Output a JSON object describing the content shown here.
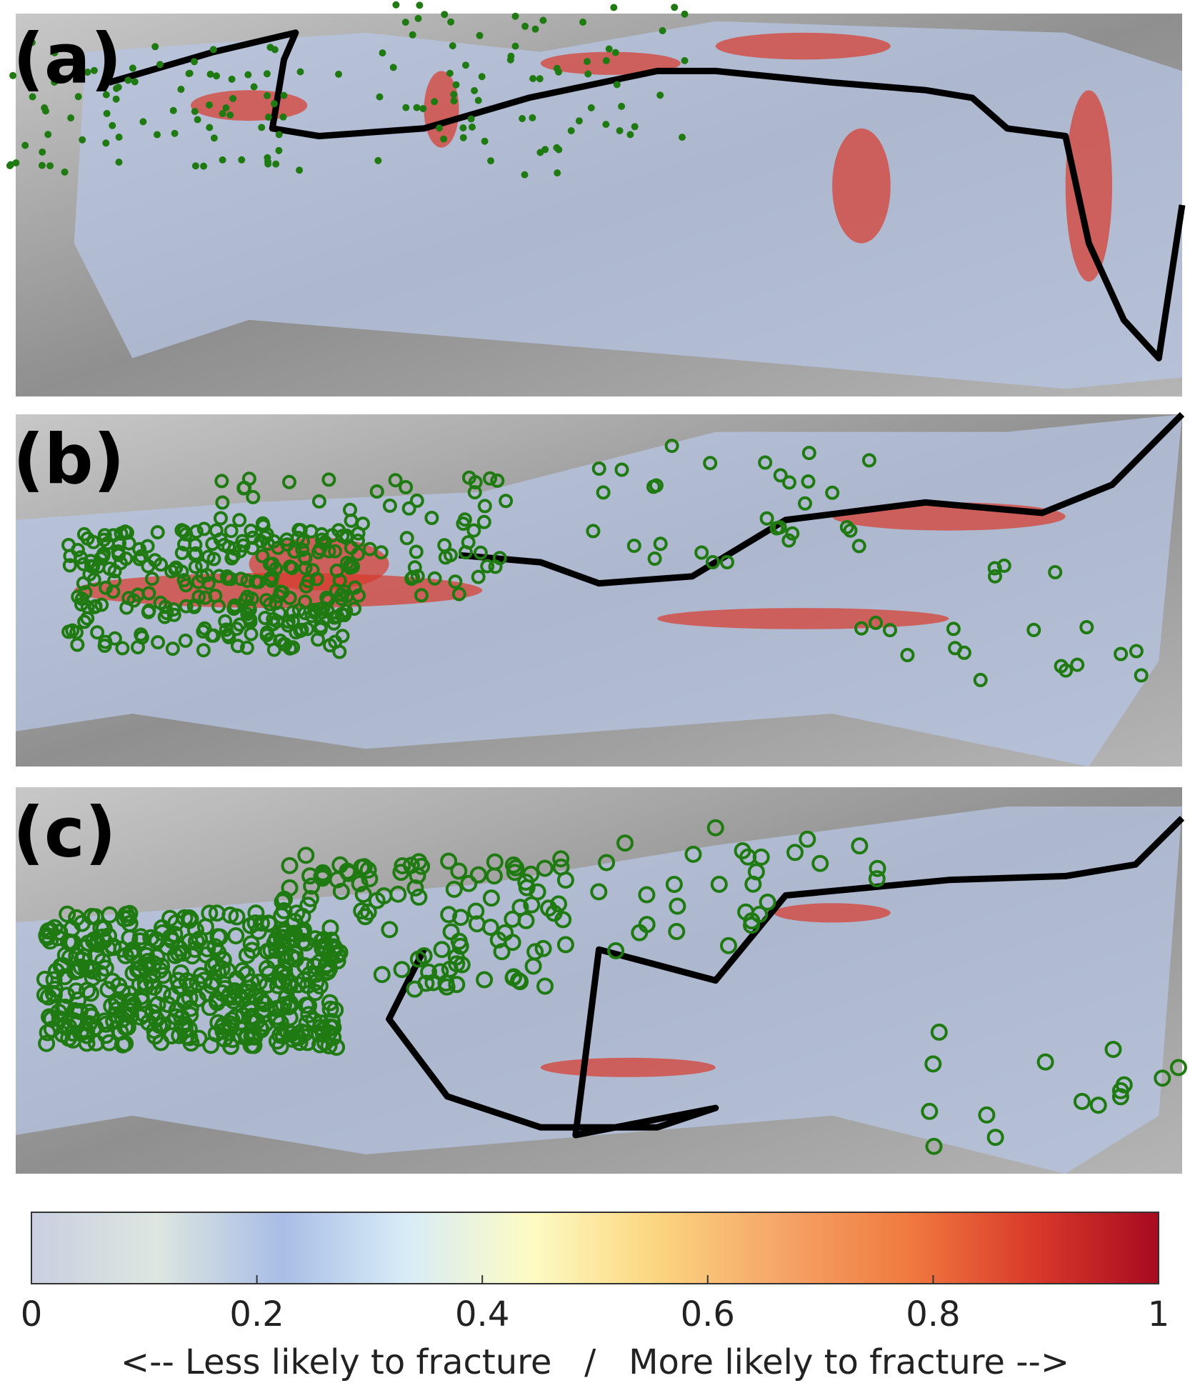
{
  "panels": [
    {
      "label": "(a)"
    },
    {
      "label": "(b)"
    },
    {
      "label": "(c)"
    }
  ],
  "colorbar": {
    "range": [
      0,
      1
    ],
    "ticks": [
      0,
      0.2,
      0.4,
      0.6,
      0.8,
      1
    ],
    "caption": "<-- Less likely to fracture   /   More likely to fracture -->",
    "colors": [
      "#c9cfe0",
      "#dde6e0",
      "#a9bde6",
      "#d8ecf7",
      "#fdfbc4",
      "#fbd57f",
      "#f5a468",
      "#f07a3f",
      "#d93a2a",
      "#a80a20"
    ]
  }
}
